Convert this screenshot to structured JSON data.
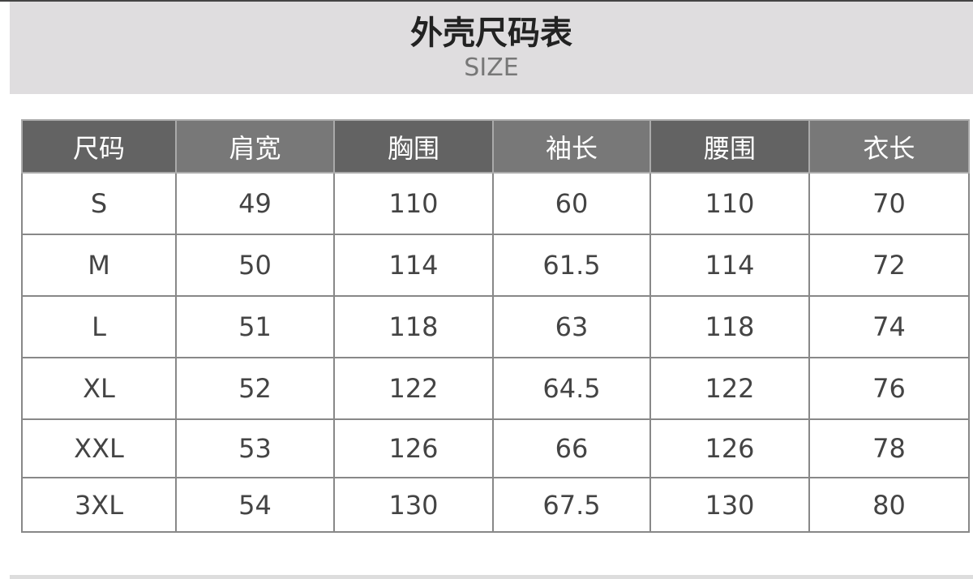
{
  "header": {
    "title": "外壳尺码表",
    "subtitle": "SIZE"
  },
  "table": {
    "columns": [
      "尺码",
      "肩宽",
      "胸围",
      "袖长",
      "腰围",
      "衣长"
    ],
    "rows": [
      [
        "S",
        "49",
        "110",
        "60",
        "110",
        "70"
      ],
      [
        "M",
        "50",
        "114",
        "61.5",
        "114",
        "72"
      ],
      [
        "L",
        "51",
        "118",
        "63",
        "118",
        "74"
      ],
      [
        "XL",
        "52",
        "122",
        "64.5",
        "122",
        "76"
      ],
      [
        "XXL",
        "53",
        "126",
        "66",
        "126",
        "78"
      ],
      [
        "3XL",
        "54",
        "130",
        "67.5",
        "130",
        "80"
      ]
    ]
  },
  "colors": {
    "header_dark": "#636363",
    "header_light": "#787878",
    "banner": "#dfdddf"
  }
}
